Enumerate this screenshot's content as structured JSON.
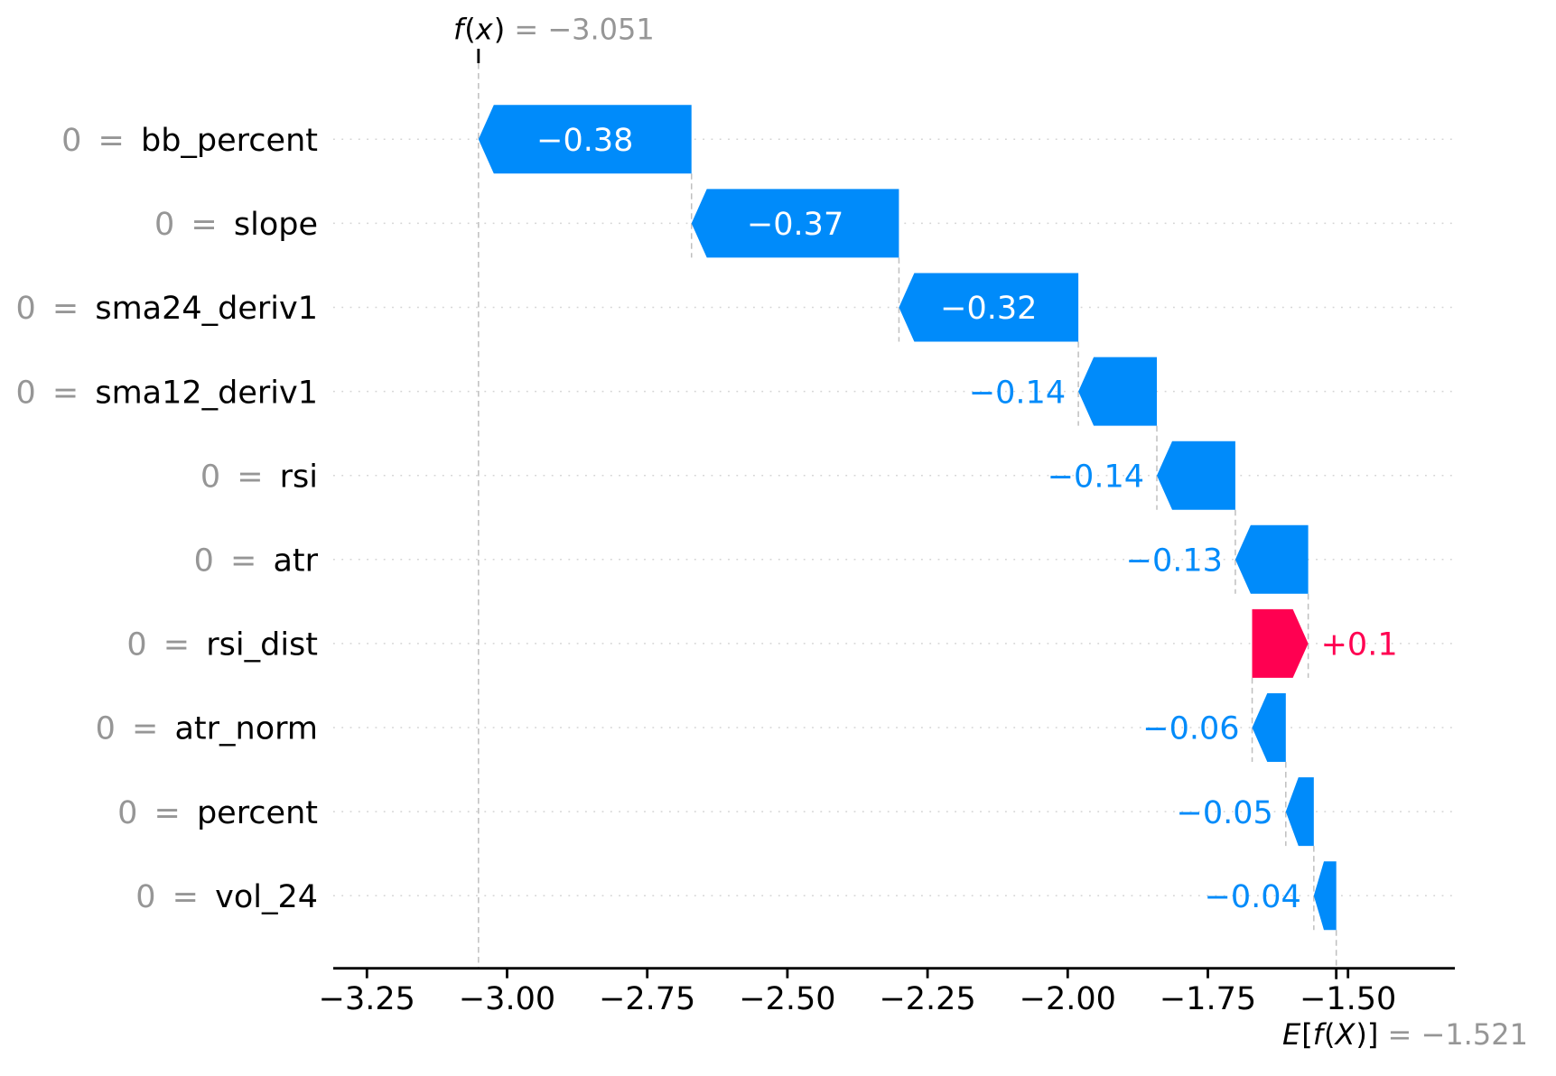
{
  "chart_data": {
    "type": "waterfall",
    "style": "shap-waterfall",
    "fx": {
      "name": "f(x)",
      "value": -3.051,
      "value_text": " = −3.051"
    },
    "efx": {
      "name": "E[f(X)]",
      "value": -1.521,
      "value_text": " = −1.521"
    },
    "features": [
      {
        "name": "bb_percent",
        "data_value": "0",
        "shap": -0.38,
        "label": "−0.38"
      },
      {
        "name": "slope",
        "data_value": "0",
        "shap": -0.37,
        "label": "−0.37"
      },
      {
        "name": "sma24_deriv1",
        "data_value": "0",
        "shap": -0.32,
        "label": "−0.32"
      },
      {
        "name": "sma12_deriv1",
        "data_value": "0",
        "shap": -0.14,
        "label": "−0.14"
      },
      {
        "name": "rsi",
        "data_value": "0",
        "shap": -0.14,
        "label": "−0.14"
      },
      {
        "name": "atr",
        "data_value": "0",
        "shap": -0.13,
        "label": "−0.13"
      },
      {
        "name": "rsi_dist",
        "data_value": "0",
        "shap": 0.1,
        "label": "+0.1"
      },
      {
        "name": "atr_norm",
        "data_value": "0",
        "shap": -0.06,
        "label": "−0.06"
      },
      {
        "name": "percent",
        "data_value": "0",
        "shap": -0.05,
        "label": "−0.05"
      },
      {
        "name": "vol_24",
        "data_value": "0",
        "shap": -0.04,
        "label": "−0.04"
      }
    ],
    "x_ticks": [
      {
        "value": -3.25,
        "label": "−3.25"
      },
      {
        "value": -3.0,
        "label": "−3.00"
      },
      {
        "value": -2.75,
        "label": "−2.75"
      },
      {
        "value": -2.5,
        "label": "−2.50"
      },
      {
        "value": -2.25,
        "label": "−2.25"
      },
      {
        "value": -2.0,
        "label": "−2.00"
      },
      {
        "value": -1.75,
        "label": "−1.75"
      },
      {
        "value": -1.5,
        "label": "−1.50"
      }
    ],
    "separator": " = ",
    "colors": {
      "negative": "#008bfa",
      "positive": "#ff0051",
      "value_inside_text": "#ffffff",
      "muted_text": "#969696",
      "text": "#000000",
      "grid": "#d4d4d4",
      "connector": "#bfbfbf",
      "axis": "#000000"
    }
  }
}
